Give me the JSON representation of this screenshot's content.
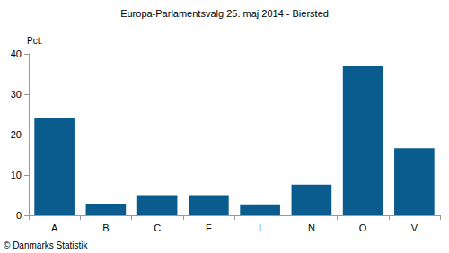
{
  "chart_data": {
    "type": "bar",
    "title": "Europa-Parlamentsvalg 25. maj 2014 - Biersted",
    "ylabel": "Pct.",
    "annotation": "© Danmarks Statistik",
    "categories": [
      "A",
      "B",
      "C",
      "F",
      "I",
      "N",
      "O",
      "V"
    ],
    "values": [
      24.1,
      2.9,
      5.0,
      5.0,
      2.7,
      7.6,
      36.9,
      16.6
    ],
    "color": "#0b5c8e",
    "ylim": [
      0,
      40
    ],
    "yticks": [
      0,
      10,
      20,
      30,
      40
    ],
    "grid": false
  }
}
